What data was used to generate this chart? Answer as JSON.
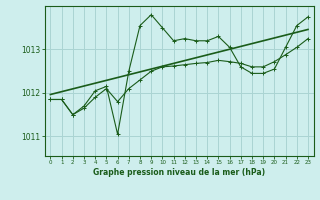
{
  "xlabel": "Graphe pression niveau de la mer (hPa)",
  "background_color": "#ceeeed",
  "grid_color": "#aad4d3",
  "line_color": "#1a5c1a",
  "xlim": [
    -0.5,
    23.5
  ],
  "ylim": [
    1010.55,
    1014.0
  ],
  "yticks": [
    1011,
    1012,
    1013
  ],
  "xticks": [
    0,
    1,
    2,
    3,
    4,
    5,
    6,
    7,
    8,
    9,
    10,
    11,
    12,
    13,
    14,
    15,
    16,
    17,
    18,
    19,
    20,
    21,
    22,
    23
  ],
  "series1": [
    1011.85,
    1011.85,
    1011.5,
    1011.7,
    1012.05,
    1012.15,
    1011.05,
    1012.5,
    1013.55,
    1013.8,
    1013.5,
    1013.2,
    1013.25,
    1013.2,
    1013.2,
    1013.3,
    1013.05,
    1012.6,
    1012.45,
    1012.45,
    1012.55,
    1013.05,
    1013.55,
    1013.75
  ],
  "series2": [
    1011.85,
    1011.85,
    1011.5,
    1011.65,
    1011.9,
    1012.1,
    1011.8,
    1012.1,
    1012.3,
    1012.5,
    1012.6,
    1012.62,
    1012.65,
    1012.68,
    1012.7,
    1012.75,
    1012.72,
    1012.68,
    1012.6,
    1012.6,
    1012.72,
    1012.88,
    1013.05,
    1013.25
  ]
}
